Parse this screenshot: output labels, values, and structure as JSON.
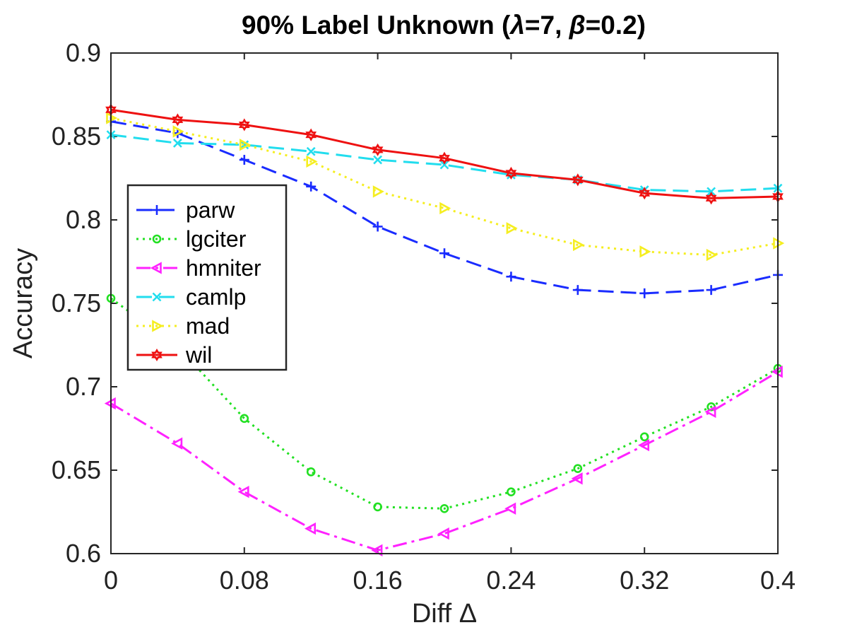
{
  "chart_data": {
    "type": "line",
    "title": "90% Label Unknown (λ=7, β=0.2)",
    "title_parts": {
      "prefix": "90% Label Unknown (",
      "lambda_sym": "λ",
      "lambda_val": "=7, ",
      "beta_sym": "β",
      "beta_val": "=0.2)"
    },
    "xlabel": "Diff Δ",
    "xlabel_parts": {
      "text": "Diff ",
      "sym": "Δ"
    },
    "ylabel": "Accuracy",
    "xlim": [
      0,
      0.4
    ],
    "ylim": [
      0.6,
      0.9
    ],
    "xticks": [
      0,
      0.08,
      0.16,
      0.24,
      0.32,
      0.4
    ],
    "xtick_labels": [
      "0",
      "0.08",
      "0.16",
      "0.24",
      "0.32",
      "0.4"
    ],
    "yticks": [
      0.6,
      0.65,
      0.7,
      0.75,
      0.8,
      0.85,
      0.9
    ],
    "ytick_labels": [
      "0.6",
      "0.65",
      "0.7",
      "0.75",
      "0.8",
      "0.85",
      "0.9"
    ],
    "legend_position": "left",
    "x": [
      0,
      0.04,
      0.08,
      0.12,
      0.16,
      0.2,
      0.24,
      0.28,
      0.32,
      0.36,
      0.4
    ],
    "series": [
      {
        "name": "parw",
        "color": "#1a2cff",
        "dash": "22,10",
        "marker": "plus",
        "values": [
          0.859,
          0.852,
          0.836,
          0.82,
          0.796,
          0.78,
          0.766,
          0.758,
          0.756,
          0.758,
          0.767
        ]
      },
      {
        "name": "lgciter",
        "color": "#22e022",
        "dash": "3,6",
        "marker": "circle",
        "values": [
          0.753,
          0.724,
          0.681,
          0.649,
          0.628,
          0.627,
          0.637,
          0.651,
          0.67,
          0.688,
          0.711
        ]
      },
      {
        "name": "hmniter",
        "color": "#ff22ff",
        "dash": "20,7,4,7",
        "marker": "triangle-left",
        "values": [
          0.69,
          0.666,
          0.637,
          0.615,
          0.602,
          0.612,
          0.627,
          0.645,
          0.665,
          0.685,
          0.709
        ]
      },
      {
        "name": "camlp",
        "color": "#22ddee",
        "dash": "22,10",
        "marker": "x",
        "values": [
          0.851,
          0.846,
          0.845,
          0.841,
          0.836,
          0.833,
          0.827,
          0.824,
          0.818,
          0.817,
          0.819
        ]
      },
      {
        "name": "mad",
        "color": "#f5ee20",
        "dash": "3,6",
        "marker": "triangle-right",
        "values": [
          0.861,
          0.853,
          0.845,
          0.835,
          0.817,
          0.807,
          0.795,
          0.785,
          0.781,
          0.779,
          0.786
        ]
      },
      {
        "name": "wil",
        "color": "#ee1111",
        "dash": "",
        "marker": "hexagram",
        "values": [
          0.866,
          0.86,
          0.857,
          0.851,
          0.842,
          0.837,
          0.828,
          0.824,
          0.816,
          0.813,
          0.814
        ]
      }
    ]
  }
}
